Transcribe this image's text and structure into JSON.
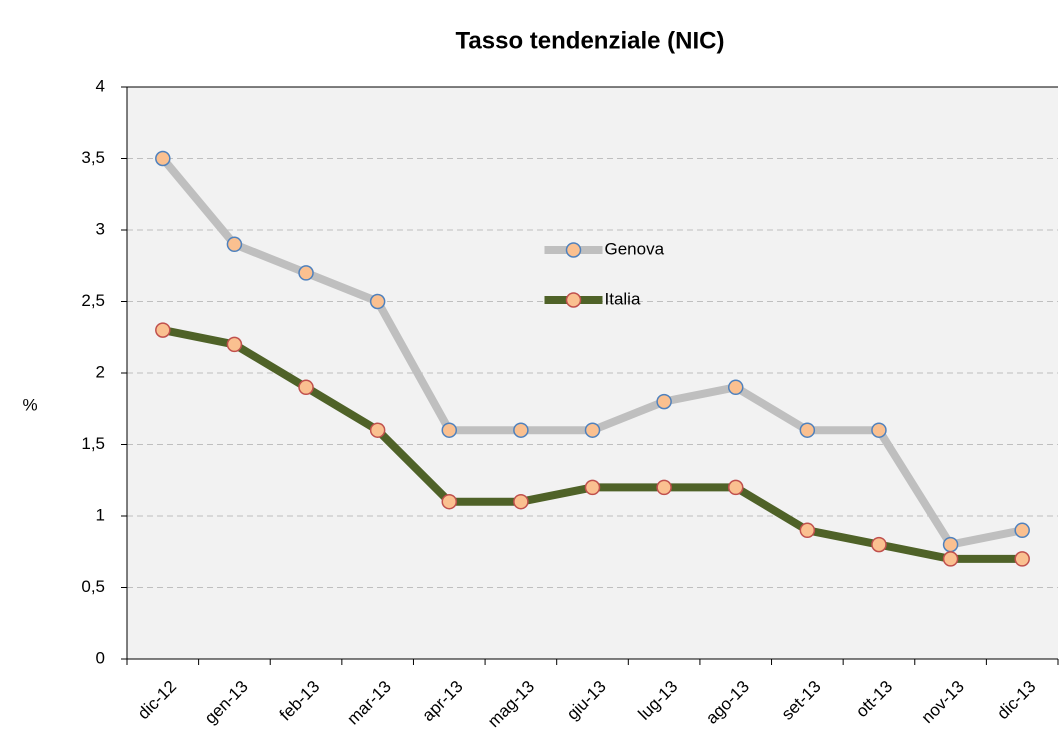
{
  "chart_data": {
    "type": "line",
    "title": "Tasso tendenziale (NIC)",
    "y_label": "%",
    "categories": [
      "dic-12",
      "gen-13",
      "feb-13",
      "mar-13",
      "apr-13",
      "mag-13",
      "giu-13",
      "lug-13",
      "ago-13",
      "set-13",
      "ott-13",
      "nov-13",
      "dic-13"
    ],
    "series": [
      {
        "name": "Genova",
        "color": "#bfbfbf",
        "marker_color": "#fac090",
        "marker_edge": "#4f81bd",
        "values": [
          3.5,
          2.9,
          2.7,
          2.5,
          1.6,
          1.6,
          1.6,
          1.8,
          1.9,
          1.6,
          1.6,
          0.8,
          0.9
        ]
      },
      {
        "name": "Italia",
        "color": "#4f6228",
        "marker_color": "#fac090",
        "marker_edge": "#c0504d",
        "values": [
          2.3,
          2.2,
          1.9,
          1.6,
          1.1,
          1.1,
          1.2,
          1.2,
          1.2,
          0.9,
          0.8,
          0.7,
          0.7
        ]
      }
    ],
    "ylim": [
      0,
      4
    ],
    "yticks": [
      0,
      {
        "value": 0.5,
        "label": "0,5"
      },
      1,
      {
        "value": 1.5,
        "label": "1,5"
      },
      2,
      {
        "value": 2.5,
        "label": "2,5"
      },
      3,
      {
        "value": 3.5,
        "label": "3,5"
      },
      4
    ],
    "grid": true,
    "legend": "center",
    "background": "#f2f2f2"
  }
}
